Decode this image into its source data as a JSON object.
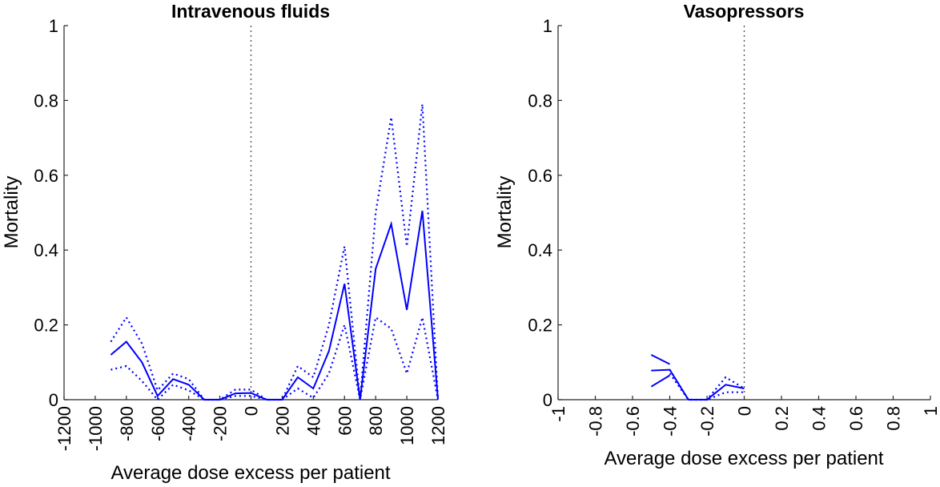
{
  "chart_data": [
    {
      "type": "line",
      "title": "Intravenous fluids",
      "xlabel": "Average dose excess per patient",
      "ylabel": "Mortality",
      "xlim": [
        -1200,
        1200
      ],
      "ylim": [
        0,
        1
      ],
      "xticks": [
        "-1200",
        "-1000",
        "-800",
        "-600",
        "-400",
        "-200",
        "0",
        "200",
        "400",
        "600",
        "800",
        "1000",
        "1200"
      ],
      "yticks": [
        "0",
        "0.2",
        "0.4",
        "0.6",
        "0.8",
        "1"
      ],
      "vline_x": 0,
      "color": "#0000FF",
      "series": [
        {
          "style": "solid",
          "points": [
            [
              -900,
              0.12
            ],
            [
              -800,
              0.155
            ],
            [
              -700,
              0.1
            ],
            [
              -600,
              0.01
            ],
            [
              -500,
              0.055
            ],
            [
              -400,
              0.04
            ],
            [
              -300,
              0.0
            ],
            [
              -200,
              0.0
            ],
            [
              -100,
              0.017
            ],
            [
              0,
              0.018
            ],
            [
              100,
              0.0
            ],
            [
              200,
              0.0
            ],
            [
              300,
              0.06
            ],
            [
              400,
              0.03
            ],
            [
              500,
              0.13
            ],
            [
              600,
              0.31
            ],
            [
              700,
              0.0
            ],
            [
              800,
              0.35
            ],
            [
              900,
              0.47
            ],
            [
              1000,
              0.24
            ],
            [
              1100,
              0.505
            ],
            [
              1200,
              0.0
            ]
          ]
        },
        {
          "style": "dotted",
          "points": [
            [
              -900,
              0.155
            ],
            [
              -800,
              0.22
            ],
            [
              -700,
              0.15
            ],
            [
              -600,
              0.025
            ],
            [
              -500,
              0.07
            ],
            [
              -400,
              0.055
            ],
            [
              -300,
              0.0
            ],
            [
              -200,
              0.0
            ],
            [
              -100,
              0.027
            ],
            [
              0,
              0.027
            ],
            [
              100,
              0.0
            ],
            [
              200,
              0.0
            ],
            [
              300,
              0.09
            ],
            [
              400,
              0.06
            ],
            [
              500,
              0.2
            ],
            [
              600,
              0.41
            ],
            [
              700,
              0.0
            ],
            [
              800,
              0.5
            ],
            [
              900,
              0.755
            ],
            [
              1000,
              0.41
            ],
            [
              1100,
              0.79
            ],
            [
              1200,
              0.0
            ]
          ]
        },
        {
          "style": "dotted",
          "points": [
            [
              -900,
              0.08
            ],
            [
              -800,
              0.09
            ],
            [
              -700,
              0.05
            ],
            [
              -600,
              0.0
            ],
            [
              -500,
              0.04
            ],
            [
              -400,
              0.025
            ],
            [
              -300,
              0.0
            ],
            [
              -200,
              0.0
            ],
            [
              -100,
              0.01
            ],
            [
              0,
              0.01
            ],
            [
              100,
              0.0
            ],
            [
              200,
              0.0
            ],
            [
              300,
              0.03
            ],
            [
              400,
              0.005
            ],
            [
              500,
              0.07
            ],
            [
              600,
              0.2
            ],
            [
              700,
              0.0
            ],
            [
              800,
              0.22
            ],
            [
              900,
              0.19
            ],
            [
              1000,
              0.07
            ],
            [
              1100,
              0.22
            ],
            [
              1200,
              0.0
            ]
          ]
        }
      ]
    },
    {
      "type": "line",
      "title": "Vasopressors",
      "xlabel": "Average dose excess per patient",
      "ylabel": "Mortality",
      "xlim": [
        -1,
        1
      ],
      "ylim": [
        0,
        1
      ],
      "xticks": [
        "-1",
        "-0.8",
        "-0.6",
        "-0.4",
        "-0.2",
        "0",
        "0.2",
        "0.4",
        "0.6",
        "0.8",
        "1"
      ],
      "yticks": [
        "0",
        "0.2",
        "0.4",
        "0.6",
        "0.8",
        "1"
      ],
      "vline_x": 0,
      "color": "#0000FF",
      "series": [
        {
          "style": "solid",
          "points": [
            [
              -0.5,
              0.078
            ],
            [
              -0.4,
              0.08
            ],
            [
              -0.3,
              0.0
            ],
            [
              -0.2,
              0.0
            ],
            [
              -0.1,
              0.04
            ],
            [
              0,
              0.03
            ]
          ]
        },
        {
          "style": "solid",
          "points": [
            [
              -0.5,
              0.12
            ],
            [
              -0.4,
              0.095
            ]
          ]
        },
        {
          "style": "solid",
          "points": [
            [
              -0.5,
              0.035
            ],
            [
              -0.4,
              0.065
            ]
          ]
        },
        {
          "style": "dotted",
          "points": [
            [
              -0.4,
              0.08
            ],
            [
              -0.3,
              0.0
            ],
            [
              -0.2,
              0.0
            ],
            [
              -0.1,
              0.06
            ],
            [
              0,
              0.03
            ]
          ]
        },
        {
          "style": "dotted",
          "points": [
            [
              -0.4,
              0.07
            ],
            [
              -0.3,
              0.0
            ],
            [
              -0.2,
              0.0
            ],
            [
              -0.1,
              0.02
            ],
            [
              0,
              0.02
            ]
          ]
        }
      ]
    }
  ]
}
